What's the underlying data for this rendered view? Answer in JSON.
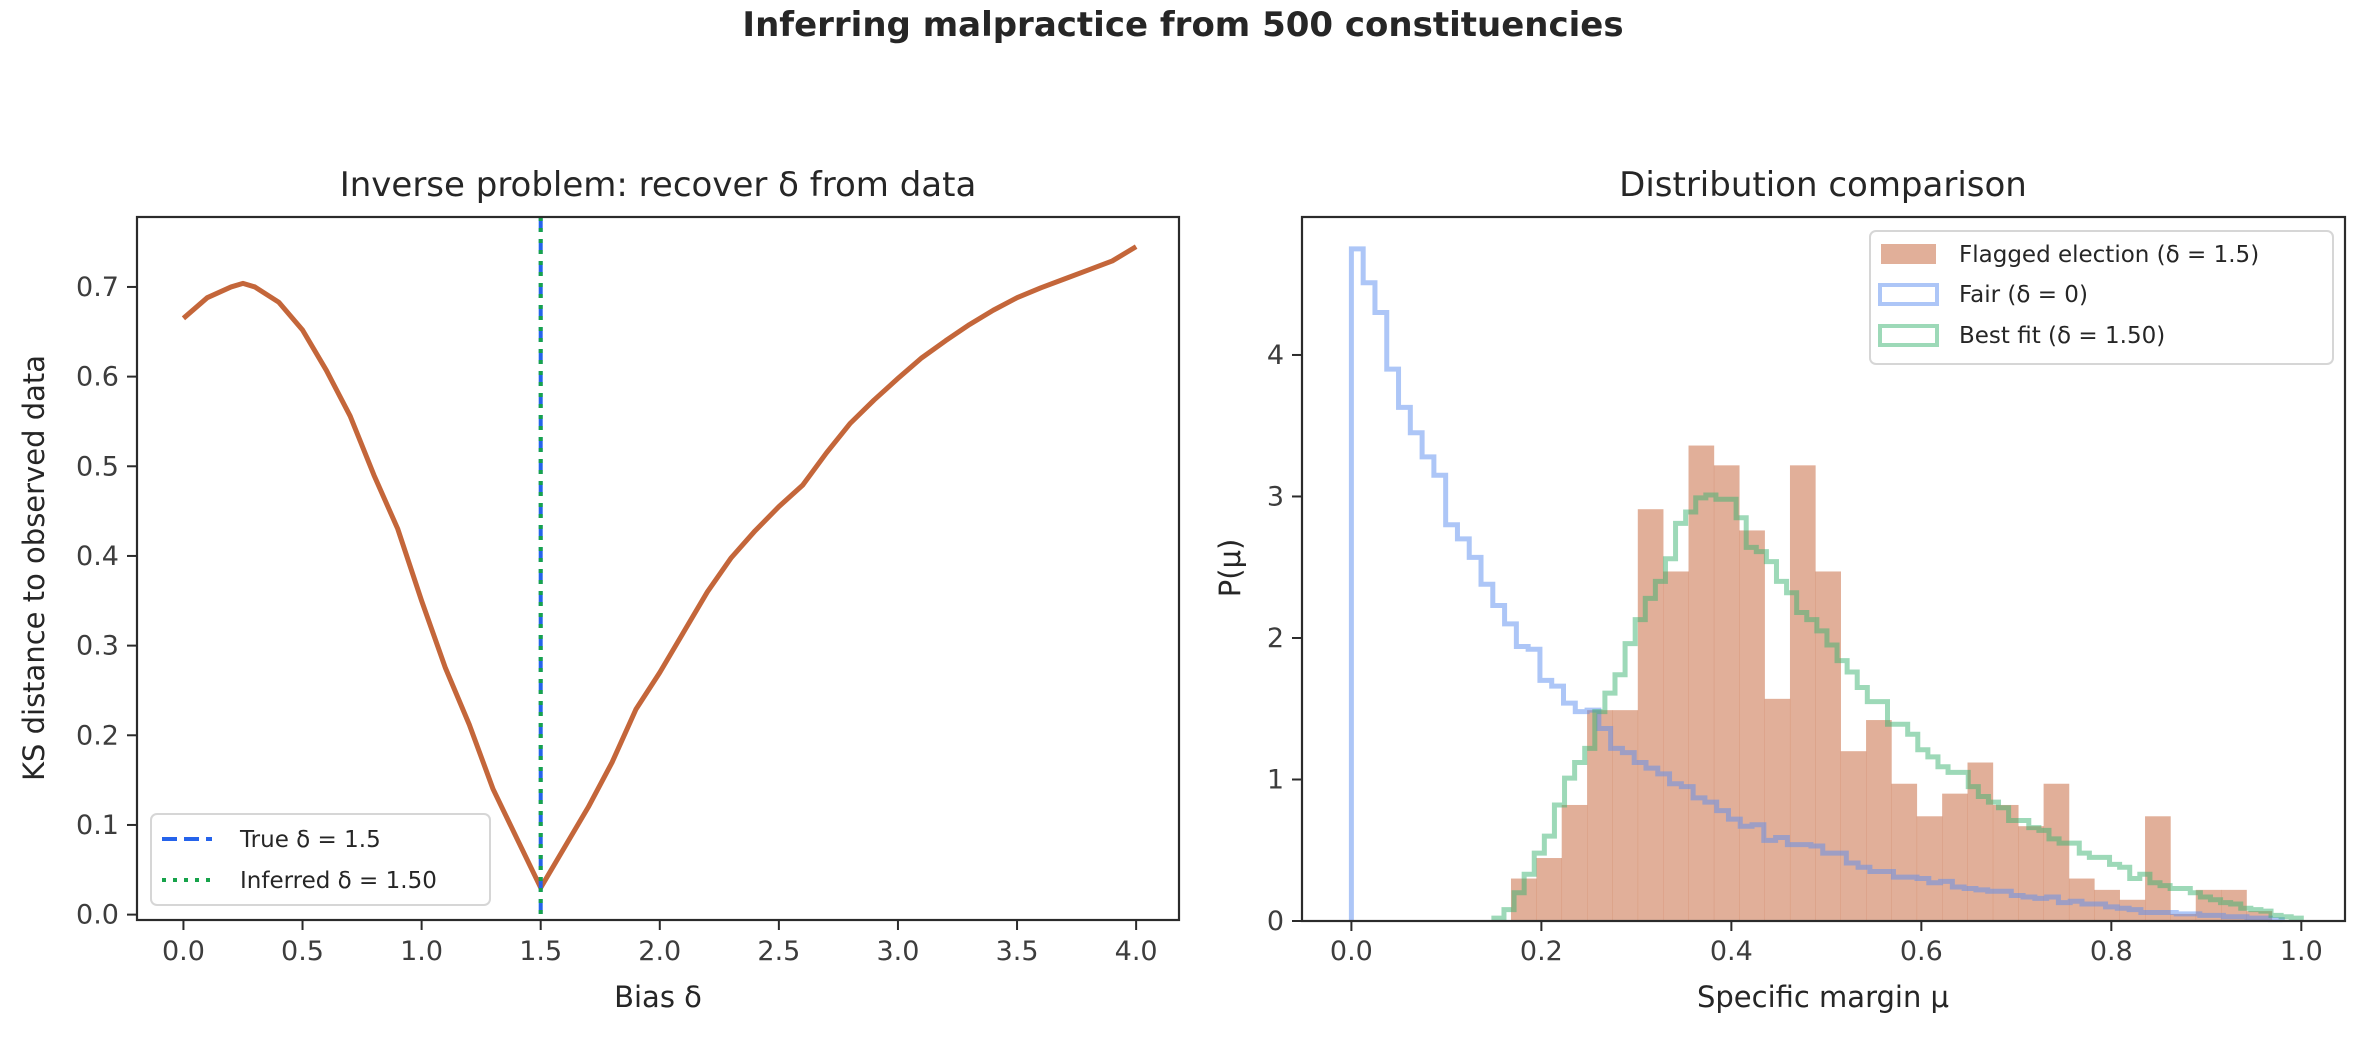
{
  "suptitle": "Inferring malpractice from 500 constituencies",
  "colors": {
    "ks_line": "#c4663a",
    "true_line": "#2563eb",
    "inferred_line": "#16a34a",
    "flagged": "#c96e46",
    "fair": "#5b8def",
    "best_fit": "#3cb371"
  },
  "chart_data": [
    {
      "type": "line",
      "title": "Inverse problem: recover δ from data",
      "xlabel": "Bias δ",
      "ylabel": "KS distance to observed data",
      "xlim": [
        -0.195,
        4.18
      ],
      "ylim": [
        -0.006,
        0.778
      ],
      "xticks": [
        "0.0",
        "0.5",
        "1.0",
        "1.5",
        "2.0",
        "2.5",
        "3.0",
        "3.5",
        "4.0"
      ],
      "yticks": [
        "0.0",
        "0.1",
        "0.2",
        "0.3",
        "0.4",
        "0.5",
        "0.6",
        "0.7"
      ],
      "grid": false,
      "series": [
        {
          "x": [
            0,
            0.1,
            0.2,
            0.25,
            0.3,
            0.4,
            0.5,
            0.6,
            0.7,
            0.8,
            0.9,
            1.0,
            1.1,
            1.2,
            1.3,
            1.4,
            1.5,
            1.6,
            1.7,
            1.8,
            1.9,
            2.0,
            2.1,
            2.2,
            2.3,
            2.4,
            2.5,
            2.6,
            2.7,
            2.8,
            2.9,
            3.0,
            3.1,
            3.2,
            3.3,
            3.4,
            3.5,
            3.6,
            3.7,
            3.8,
            3.9,
            4.0
          ],
          "y": [
            0.665,
            0.688,
            0.7,
            0.704,
            0.7,
            0.683,
            0.652,
            0.607,
            0.556,
            0.49,
            0.43,
            0.35,
            0.275,
            0.212,
            0.14,
            0.085,
            0.03,
            0.075,
            0.12,
            0.17,
            0.229,
            0.27,
            0.315,
            0.36,
            0.398,
            0.428,
            0.455,
            0.479,
            0.515,
            0.548,
            0.574,
            0.598,
            0.621,
            0.64,
            0.658,
            0.674,
            0.688,
            0.699,
            0.709,
            0.719,
            0.729,
            0.745
          ]
        }
      ],
      "vlines": [
        {
          "name": "True δ = 1.5",
          "x": 1.5,
          "style": "dashed"
        },
        {
          "name": "Inferred δ = 1.50",
          "x": 1.5,
          "style": "dotted"
        }
      ],
      "legend": "lower-left"
    },
    {
      "type": "histogram",
      "title": "Distribution comparison",
      "xlabel": "Specific margin μ",
      "ylabel": "P(μ)",
      "xlim": [
        -0.052,
        1.046
      ],
      "ylim": [
        0,
        4.975
      ],
      "xticks": [
        "0.0",
        "0.2",
        "0.4",
        "0.6",
        "0.8",
        "1.0"
      ],
      "yticks": [
        "0",
        "1",
        "2",
        "3",
        "4"
      ],
      "grid": false,
      "legend": "upper-right",
      "series": [
        {
          "name": "Flagged election (δ = 1.5)",
          "style": "filled",
          "range": [
            0.168,
            0.969
          ],
          "values": [
            0.3,
            0.445,
            0.82,
            1.49,
            1.49,
            2.91,
            2.47,
            3.36,
            3.22,
            2.76,
            1.57,
            3.22,
            2.47,
            1.2,
            1.42,
            0.97,
            0.74,
            0.9,
            1.12,
            0.82,
            0.67,
            0.97,
            0.3,
            0.22,
            0.15,
            0.74,
            0.05,
            0.22,
            0.22,
            0.07
          ]
        },
        {
          "name": "Fair (δ = 0)",
          "style": "step",
          "range": [
            0,
            0.98
          ],
          "values": [
            4.75,
            4.51,
            4.3,
            3.9,
            3.63,
            3.45,
            3.28,
            3.15,
            2.8,
            2.7,
            2.57,
            2.38,
            2.23,
            2.1,
            1.94,
            1.92,
            1.7,
            1.66,
            1.54,
            1.48,
            1.49,
            1.36,
            1.22,
            1.19,
            1.12,
            1.08,
            1.04,
            0.97,
            0.95,
            0.87,
            0.84,
            0.78,
            0.72,
            0.67,
            0.68,
            0.57,
            0.59,
            0.54,
            0.54,
            0.53,
            0.48,
            0.48,
            0.41,
            0.38,
            0.35,
            0.35,
            0.31,
            0.31,
            0.3,
            0.27,
            0.28,
            0.24,
            0.23,
            0.22,
            0.21,
            0.21,
            0.18,
            0.17,
            0.16,
            0.17,
            0.13,
            0.14,
            0.12,
            0.12,
            0.1,
            0.09,
            0.08,
            0.06,
            0.06,
            0.06,
            0.05,
            0.05,
            0.04,
            0.04,
            0.03,
            0.03,
            0.02,
            0.02,
            0.01
          ]
        },
        {
          "name": "Best fit (δ = 1.50)",
          "style": "step",
          "range": [
            0.15,
            1.0
          ],
          "values": [
            0.02,
            0.08,
            0.2,
            0.33,
            0.48,
            0.6,
            0.82,
            1.01,
            1.12,
            1.22,
            1.48,
            1.61,
            1.74,
            1.96,
            2.13,
            2.28,
            2.4,
            2.56,
            2.81,
            2.89,
            2.99,
            3.01,
            2.98,
            2.98,
            2.85,
            2.64,
            2.61,
            2.54,
            2.4,
            2.32,
            2.18,
            2.13,
            2.05,
            1.95,
            1.84,
            1.76,
            1.65,
            1.55,
            1.55,
            1.39,
            1.39,
            1.32,
            1.21,
            1.16,
            1.09,
            1.05,
            1.05,
            0.95,
            0.88,
            0.84,
            0.8,
            0.71,
            0.71,
            0.66,
            0.64,
            0.58,
            0.55,
            0.55,
            0.48,
            0.45,
            0.45,
            0.4,
            0.38,
            0.3,
            0.33,
            0.27,
            0.25,
            0.23,
            0.23,
            0.2,
            0.17,
            0.15,
            0.13,
            0.12,
            0.09,
            0.08,
            0.07,
            0.04,
            0.03,
            0.02
          ]
        }
      ]
    }
  ]
}
